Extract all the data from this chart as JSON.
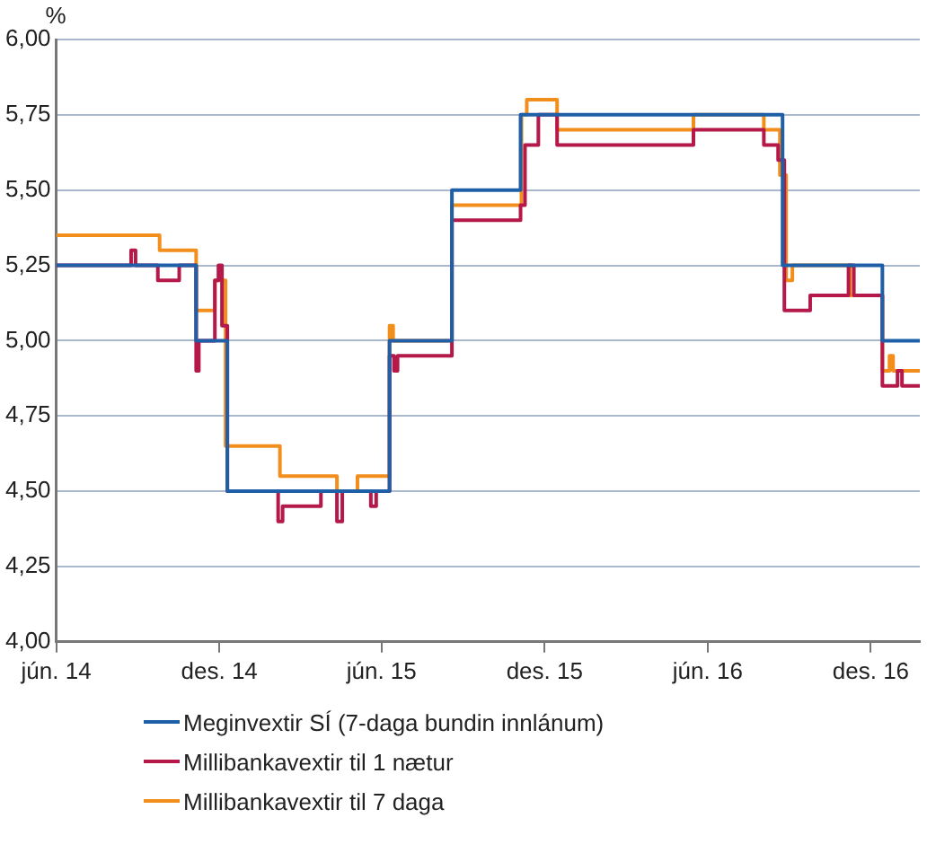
{
  "chart_data": {
    "type": "step",
    "ylabel": "%",
    "xlim": [
      "2014-06-01",
      "2017-01-25"
    ],
    "xticks": [
      {
        "value": "2014-06-01",
        "label": "jún. 14"
      },
      {
        "value": "2014-12-01",
        "label": "des. 14"
      },
      {
        "value": "2015-06-01",
        "label": "jún. 15"
      },
      {
        "value": "2015-12-01",
        "label": "des. 15"
      },
      {
        "value": "2016-06-01",
        "label": "jún. 16"
      },
      {
        "value": "2016-12-01",
        "label": "des. 16"
      }
    ],
    "ylim": [
      4,
      6
    ],
    "yticks": [
      {
        "value": 4,
        "label": "4,00"
      },
      {
        "value": 4.25,
        "label": "4,25"
      },
      {
        "value": 4.5,
        "label": "4,50"
      },
      {
        "value": 4.75,
        "label": "4,75"
      },
      {
        "value": 5,
        "label": "5,00"
      },
      {
        "value": 5.25,
        "label": "5,25"
      },
      {
        "value": 5.5,
        "label": "5,50"
      },
      {
        "value": 5.75,
        "label": "5,75"
      },
      {
        "value": 6,
        "label": "6,00"
      }
    ],
    "grid": "y",
    "legend": "bottom",
    "series": [
      {
        "name": "Meginvextir SÍ (7-daga bundin innlánum)",
        "color": "#1f5fa8",
        "x": [
          "2014-06-01",
          "2014-11-05",
          "2014-12-10",
          "2015-06-10",
          "2015-08-19",
          "2015-11-04",
          "2016-08-24",
          "2016-12-14",
          "2017-01-25"
        ],
        "values": [
          5.25,
          5.0,
          4.5,
          5.0,
          5.5,
          5.75,
          5.25,
          5.0,
          5.0
        ]
      },
      {
        "name": "Millibankavextir til 1 nætur",
        "color": "#b5194a",
        "x": [
          "2014-06-01",
          "2014-08-24",
          "2014-08-29",
          "2014-09-23",
          "2014-10-17",
          "2014-11-05",
          "2014-11-08",
          "2014-11-26",
          "2014-11-30",
          "2014-12-04",
          "2014-12-10",
          "2015-02-05",
          "2015-02-10",
          "2015-03-25",
          "2015-04-12",
          "2015-04-18",
          "2015-05-20",
          "2015-05-26",
          "2015-06-10",
          "2015-06-15",
          "2015-06-19",
          "2015-08-19",
          "2015-11-04",
          "2015-11-09",
          "2015-11-24",
          "2015-12-15",
          "2016-05-16",
          "2016-08-03",
          "2016-08-19",
          "2016-08-26",
          "2016-09-24",
          "2016-11-06",
          "2016-11-12",
          "2016-12-14",
          "2016-12-31",
          "2017-01-05",
          "2017-01-25"
        ],
        "values": [
          5.25,
          5.3,
          5.25,
          5.2,
          5.25,
          4.9,
          5.0,
          5.2,
          5.25,
          5.05,
          4.5,
          4.4,
          4.45,
          4.5,
          4.4,
          4.5,
          4.45,
          4.5,
          4.95,
          4.9,
          4.95,
          5.4,
          5.45,
          5.65,
          5.75,
          5.65,
          5.7,
          5.65,
          5.6,
          5.1,
          5.15,
          5.25,
          5.15,
          4.85,
          4.9,
          4.85,
          4.85
        ]
      },
      {
        "name": "Millibankavextir til 7 daga",
        "color": "#f28e1c",
        "x": [
          "2014-06-01",
          "2014-09-25",
          "2014-11-05",
          "2014-11-26",
          "2014-12-08",
          "2015-02-07",
          "2015-04-12",
          "2015-05-05",
          "2015-06-10",
          "2015-06-14",
          "2015-08-19",
          "2015-11-05",
          "2015-11-11",
          "2015-12-15",
          "2016-05-16",
          "2016-08-03",
          "2016-08-21",
          "2016-08-28",
          "2016-09-04",
          "2016-11-08",
          "2016-12-14",
          "2016-12-22",
          "2016-12-26",
          "2017-01-25"
        ],
        "values": [
          5.35,
          5.3,
          5.1,
          5.2,
          4.65,
          4.55,
          4.5,
          4.55,
          5.05,
          5.0,
          5.45,
          5.75,
          5.8,
          5.7,
          5.75,
          5.7,
          5.55,
          5.2,
          5.25,
          5.15,
          4.9,
          4.95,
          4.9,
          4.9
        ]
      }
    ]
  }
}
